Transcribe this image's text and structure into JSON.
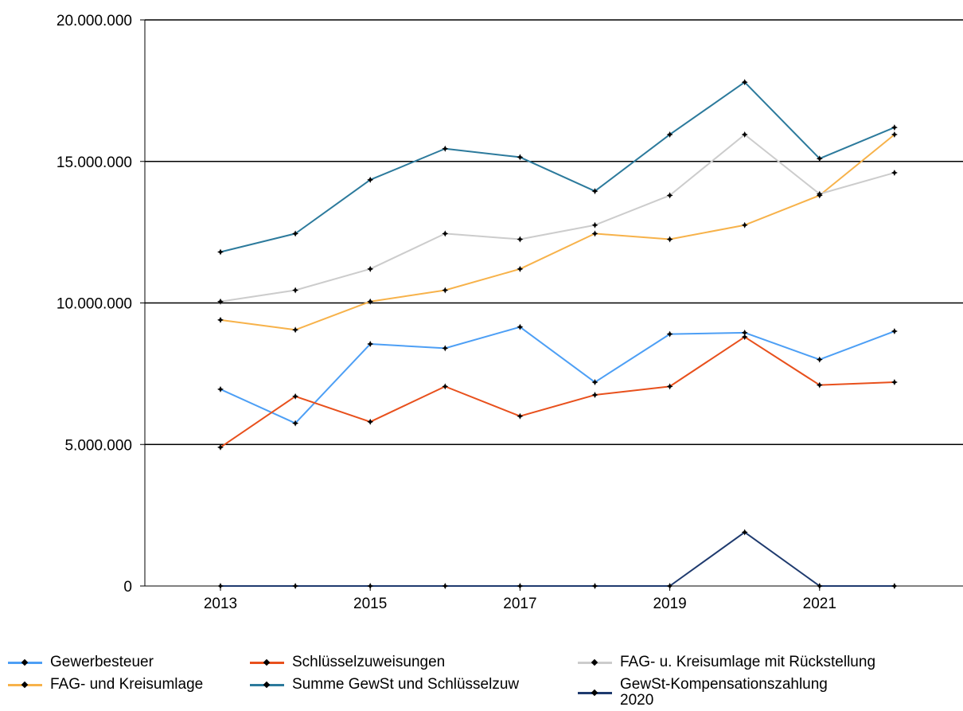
{
  "chart_data": {
    "type": "line",
    "title": "",
    "xlabel": "",
    "ylabel": "",
    "x": [
      2013,
      2014,
      2015,
      2016,
      2017,
      2018,
      2019,
      2020,
      2021,
      2022
    ],
    "x_tick_labels": [
      "2013",
      "2015",
      "2017",
      "2019",
      "2021"
    ],
    "y_tick_labels": [
      "0",
      "5.000.000",
      "10.000.000",
      "15.000.000",
      "20.000.000"
    ],
    "ylim": [
      0,
      20000000
    ],
    "grid": "horizontal",
    "legend_position": "bottom",
    "series": [
      {
        "name": "Gewerbesteuer",
        "color": "#4d9ff5",
        "values": [
          6950000,
          5750000,
          8550000,
          8400000,
          9150000,
          7200000,
          8900000,
          8950000,
          8000000,
          9000000
        ]
      },
      {
        "name": "Schlüsselzuweisungen",
        "color": "#e8501c",
        "values": [
          4900000,
          6700000,
          5800000,
          7050000,
          6000000,
          6750000,
          7050000,
          8800000,
          7100000,
          7200000
        ]
      },
      {
        "name": "FAG- u. Kreisumlage mit Rückstellung",
        "color": "#cccccc",
        "values": [
          10050000,
          10450000,
          11200000,
          12450000,
          12250000,
          12750000,
          13800000,
          15950000,
          13850000,
          14600000
        ]
      },
      {
        "name": "FAG- und Kreisumlage",
        "color": "#f7b24a",
        "values": [
          9400000,
          9050000,
          10050000,
          10450000,
          11200000,
          12450000,
          12250000,
          12750000,
          13800000,
          15950000
        ]
      },
      {
        "name": "Summe GewSt und Schlüsselzuw",
        "color": "#2c7a9c",
        "values": [
          11800000,
          12450000,
          14350000,
          15450000,
          15150000,
          13950000,
          15950000,
          17800000,
          15100000,
          16200000
        ]
      },
      {
        "name": "GewSt-Kompensationszahlung\n2020",
        "color": "#1e3a6e",
        "values": [
          0,
          0,
          0,
          0,
          0,
          0,
          0,
          1900000,
          0,
          0
        ]
      }
    ]
  }
}
